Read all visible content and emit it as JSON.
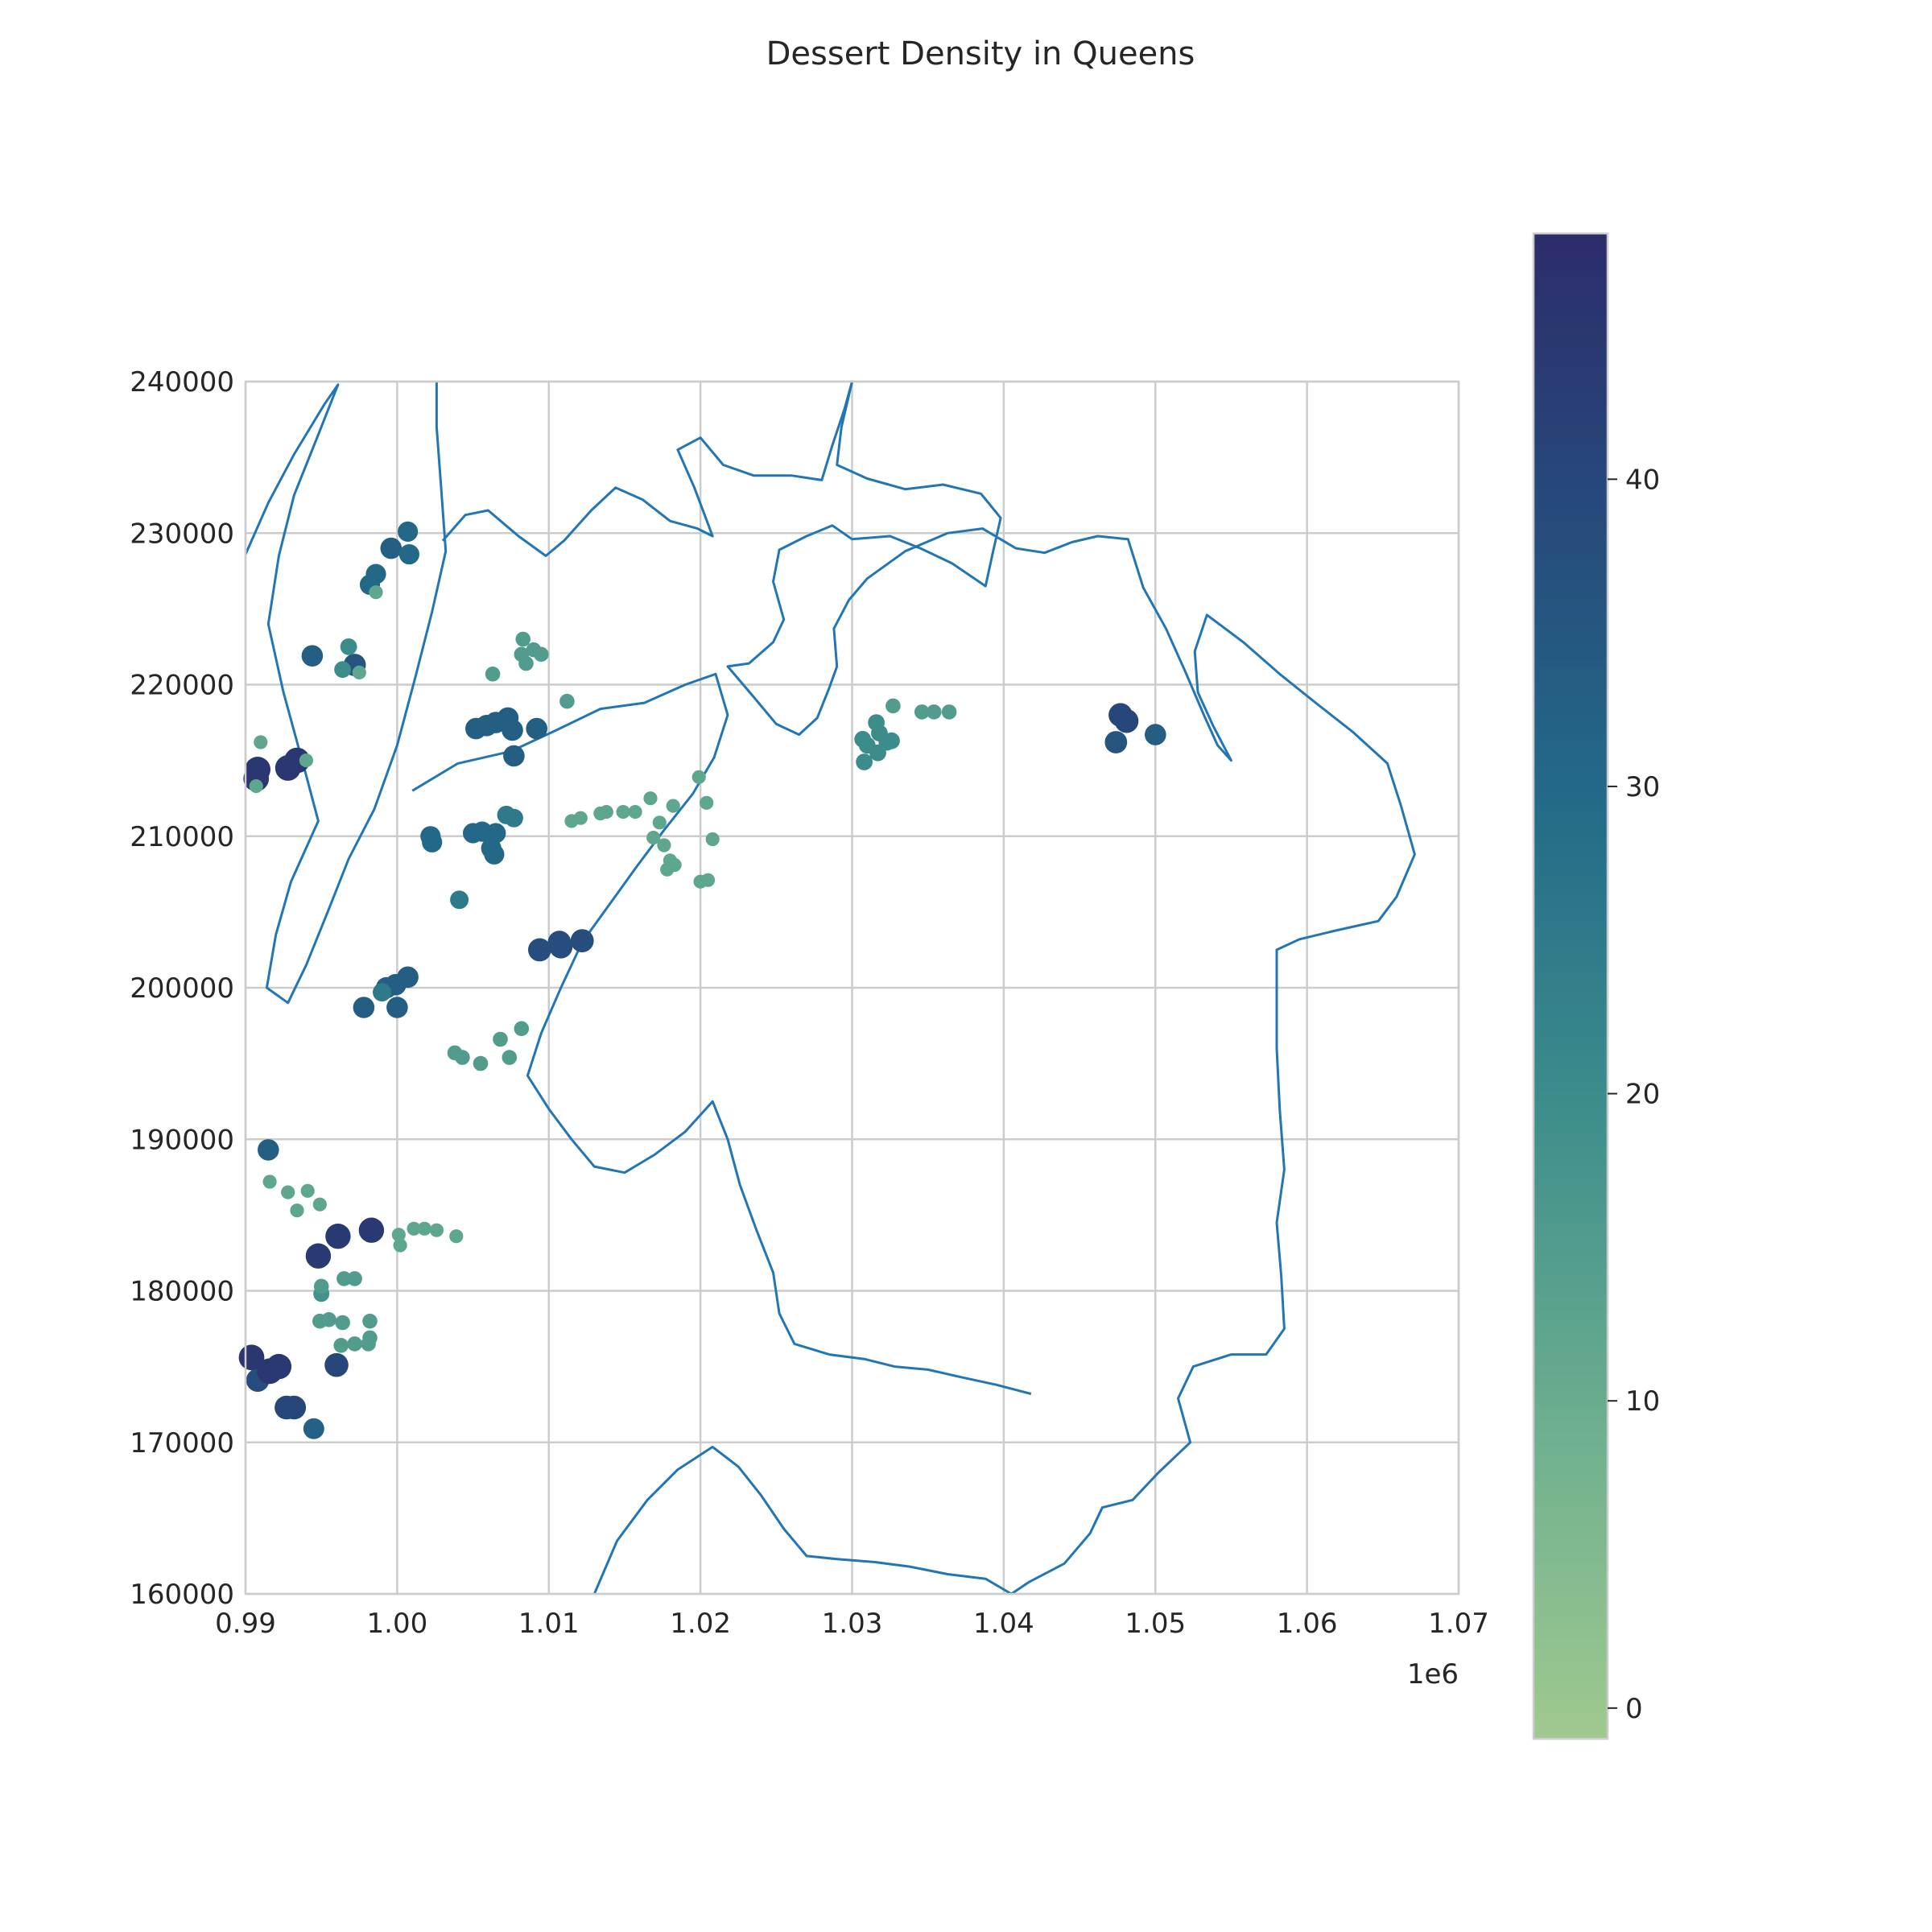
{
  "chart_data": {
    "type": "scatter",
    "title": "Dessert Density in Queens",
    "xlabel": "",
    "ylabel": "",
    "x_offset_label": "1e6",
    "xlim": [
      990000,
      1070000
    ],
    "ylim": [
      160000,
      240000
    ],
    "x_ticks": [
      990000,
      1000000,
      1010000,
      1020000,
      1030000,
      1040000,
      1050000,
      1060000,
      1070000
    ],
    "x_tick_labels": [
      "0.99",
      "1.00",
      "1.01",
      "1.02",
      "1.03",
      "1.04",
      "1.05",
      "1.06",
      "1.07"
    ],
    "y_ticks": [
      160000,
      170000,
      180000,
      190000,
      200000,
      210000,
      220000,
      230000,
      240000
    ],
    "y_tick_labels": [
      "160000",
      "170000",
      "180000",
      "190000",
      "200000",
      "210000",
      "220000",
      "230000",
      "240000"
    ],
    "grid": true,
    "legend": "none",
    "colorbar": {
      "cmap": "crest",
      "vmin": -1,
      "vmax": 48,
      "ticks": [
        0,
        10,
        20,
        30,
        40
      ],
      "tick_labels": [
        "0",
        "10",
        "20",
        "30",
        "40"
      ],
      "low_color": "#a0c98f",
      "mid_color": "#3d8d8c",
      "high_color": "#2c3070"
    },
    "boundary_color": "#2276b4",
    "points": [
      [
        990400,
        175600,
        45
      ],
      [
        990800,
        174100,
        38
      ],
      [
        991600,
        174700,
        45
      ],
      [
        992200,
        175000,
        44
      ],
      [
        992700,
        172300,
        40
      ],
      [
        993200,
        172300,
        40
      ],
      [
        994500,
        170900,
        32
      ],
      [
        996000,
        175100,
        40
      ],
      [
        994800,
        182300,
        44
      ],
      [
        996100,
        183600,
        44
      ],
      [
        998300,
        184000,
        44
      ],
      [
        994900,
        178000,
        15
      ],
      [
        995500,
        178100,
        15
      ],
      [
        996400,
        177900,
        15
      ],
      [
        996300,
        176400,
        15
      ],
      [
        997200,
        176500,
        15
      ],
      [
        998100,
        176500,
        15
      ],
      [
        998200,
        176900,
        15
      ],
      [
        998200,
        178000,
        15
      ],
      [
        995000,
        179800,
        18
      ],
      [
        996500,
        180800,
        15
      ],
      [
        997200,
        180800,
        15
      ],
      [
        995000,
        180300,
        15
      ],
      [
        991500,
        189300,
        33
      ],
      [
        990700,
        213800,
        45
      ],
      [
        990800,
        214400,
        45
      ],
      [
        992800,
        214500,
        45
      ],
      [
        993400,
        215000,
        45
      ],
      [
        994400,
        221900,
        33
      ],
      [
        997200,
        221300,
        36
      ],
      [
        996800,
        222500,
        20
      ],
      [
        996400,
        221000,
        20
      ],
      [
        998200,
        226600,
        30
      ],
      [
        998600,
        227300,
        30
      ],
      [
        999600,
        229000,
        33
      ],
      [
        1000700,
        230100,
        30
      ],
      [
        1000800,
        228600,
        30
      ],
      [
        1004100,
        205800,
        25
      ],
      [
        997800,
        198700,
        33
      ],
      [
        999300,
        200000,
        33
      ],
      [
        999900,
        200200,
        33
      ],
      [
        1000000,
        198700,
        33
      ],
      [
        1000700,
        200700,
        33
      ],
      [
        999000,
        199700,
        25
      ],
      [
        1002200,
        210000,
        30
      ],
      [
        1002300,
        209600,
        30
      ],
      [
        1005000,
        210200,
        30
      ],
      [
        1005600,
        210300,
        30
      ],
      [
        1006500,
        210200,
        30
      ],
      [
        1006200,
        209200,
        30
      ],
      [
        1006400,
        208800,
        30
      ],
      [
        1007200,
        211400,
        25
      ],
      [
        1007700,
        211200,
        25
      ],
      [
        1005200,
        217100,
        33
      ],
      [
        1005900,
        217300,
        33
      ],
      [
        1006500,
        217500,
        33
      ],
      [
        1007300,
        217800,
        33
      ],
      [
        1007600,
        217000,
        33
      ],
      [
        1009200,
        217100,
        33
      ],
      [
        1007700,
        215300,
        33
      ],
      [
        1006300,
        220700,
        15
      ],
      [
        1008200,
        222000,
        15
      ],
      [
        1008300,
        223000,
        15
      ],
      [
        1009000,
        222300,
        15
      ],
      [
        1009500,
        222000,
        15
      ],
      [
        1008500,
        221400,
        15
      ],
      [
        1011200,
        218900,
        15
      ],
      [
        1009400,
        202500,
        38
      ],
      [
        1010700,
        203000,
        38
      ],
      [
        1012200,
        203100,
        38
      ],
      [
        1010800,
        202700,
        38
      ],
      [
        1003800,
        195700,
        15
      ],
      [
        1004300,
        195400,
        15
      ],
      [
        1005500,
        195000,
        15
      ],
      [
        1006800,
        196600,
        15
      ],
      [
        1007400,
        195400,
        15
      ],
      [
        1008200,
        197300,
        15
      ],
      [
        1011500,
        211000,
        12
      ],
      [
        1012100,
        211200,
        12
      ],
      [
        1013400,
        211500,
        12
      ],
      [
        1013800,
        211600,
        12
      ],
      [
        1014900,
        211600,
        12
      ],
      [
        1015700,
        211600,
        12
      ],
      [
        1016700,
        212500,
        12
      ],
      [
        1017300,
        210900,
        12
      ],
      [
        1016900,
        209900,
        12
      ],
      [
        1017600,
        209400,
        12
      ],
      [
        1018000,
        208400,
        12
      ],
      [
        1017800,
        207800,
        12
      ],
      [
        1018300,
        208100,
        12
      ],
      [
        1018200,
        212000,
        12
      ],
      [
        1019900,
        213900,
        12
      ],
      [
        1020400,
        212200,
        12
      ],
      [
        1020800,
        209800,
        12
      ],
      [
        1020000,
        207000,
        12
      ],
      [
        1020500,
        207100,
        12
      ],
      [
        1030700,
        216400,
        20
      ],
      [
        1031000,
        216000,
        20
      ],
      [
        1031600,
        217500,
        20
      ],
      [
        1031800,
        216800,
        20
      ],
      [
        1032300,
        216200,
        20
      ],
      [
        1031700,
        215500,
        20
      ],
      [
        1030800,
        214900,
        20
      ],
      [
        1032600,
        216300,
        20
      ],
      [
        1032700,
        218600,
        15
      ],
      [
        1034600,
        218200,
        15
      ],
      [
        1035400,
        218200,
        15
      ],
      [
        1036400,
        218200,
        15
      ],
      [
        1047400,
        216200,
        36
      ],
      [
        1047700,
        218000,
        40
      ],
      [
        1048100,
        217600,
        40
      ],
      [
        1050000,
        216700,
        33
      ],
      [
        1001800,
        184100,
        12
      ],
      [
        1002600,
        184000,
        12
      ],
      [
        1003900,
        183600,
        12
      ],
      [
        1000100,
        183700,
        12
      ],
      [
        1000200,
        183000,
        12
      ],
      [
        1001100,
        184100,
        12
      ],
      [
        992800,
        186500,
        12
      ],
      [
        993400,
        185300,
        12
      ],
      [
        994100,
        186600,
        12
      ],
      [
        994900,
        185700,
        12
      ],
      [
        991600,
        187200,
        12
      ],
      [
        990700,
        213300,
        12
      ],
      [
        991000,
        216200,
        12
      ],
      [
        994000,
        215000,
        12
      ],
      [
        997500,
        220800,
        12
      ],
      [
        998600,
        226100,
        12
      ]
    ]
  }
}
